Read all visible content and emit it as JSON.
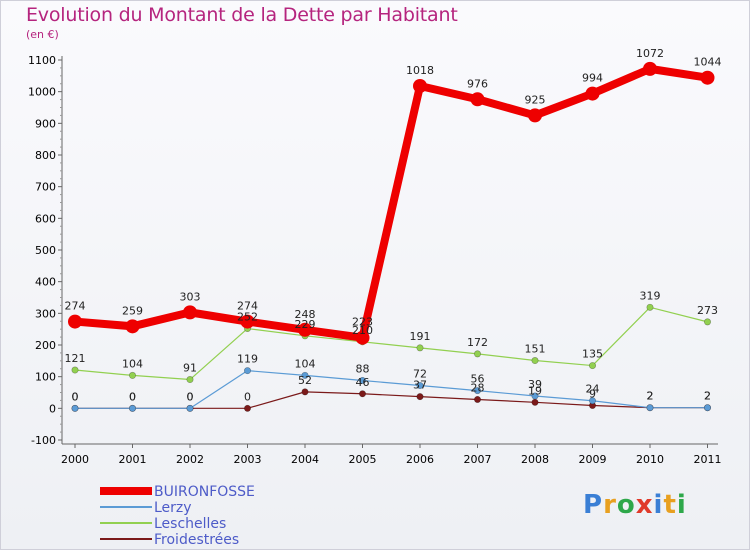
{
  "header": {
    "title": "Evolution du Montant de la Dette par Habitant",
    "unit": "(en €)"
  },
  "logo": {
    "letters": [
      "P",
      "r",
      "o",
      "x",
      "i",
      "t",
      "i"
    ],
    "colors": [
      "#3a7fd5",
      "#e8a020",
      "#2ea84a",
      "#e03a2a",
      "#3a7fd5",
      "#e8a020",
      "#2ea84a"
    ]
  },
  "chart_data": {
    "type": "line",
    "title": "Evolution du Montant de la Dette par Habitant",
    "ylabel": "(en €)",
    "xlabel": "",
    "ylim": [
      -100,
      1100
    ],
    "yticks": [
      -100,
      0,
      100,
      200,
      300,
      400,
      500,
      600,
      700,
      800,
      900,
      1000,
      1100
    ],
    "categories": [
      "2000",
      "2001",
      "2002",
      "2003",
      "2004",
      "2005",
      "2006",
      "2007",
      "2008",
      "2009",
      "2010",
      "2011"
    ],
    "grid": false,
    "legend_position": "bottom-left",
    "series": [
      {
        "name": "BUIRONFOSSE",
        "color": "#ee0000",
        "values": [
          274,
          259,
          303,
          274,
          248,
          223,
          1018,
          976,
          925,
          994,
          1072,
          1044
        ]
      },
      {
        "name": "Lerzy",
        "color": "#5b9bd5",
        "values": [
          0,
          0,
          0,
          119,
          104,
          88,
          72,
          56,
          39,
          24,
          2,
          2
        ]
      },
      {
        "name": "Leschelles",
        "color": "#92d050",
        "values": [
          121,
          104,
          91,
          252,
          229,
          210,
          191,
          172,
          151,
          135,
          319,
          273
        ]
      },
      {
        "name": "Froidestrées",
        "color": "#7b1a1a",
        "values": [
          0,
          0,
          0,
          0,
          52,
          46,
          37,
          28,
          19,
          9,
          2,
          2
        ]
      }
    ]
  }
}
